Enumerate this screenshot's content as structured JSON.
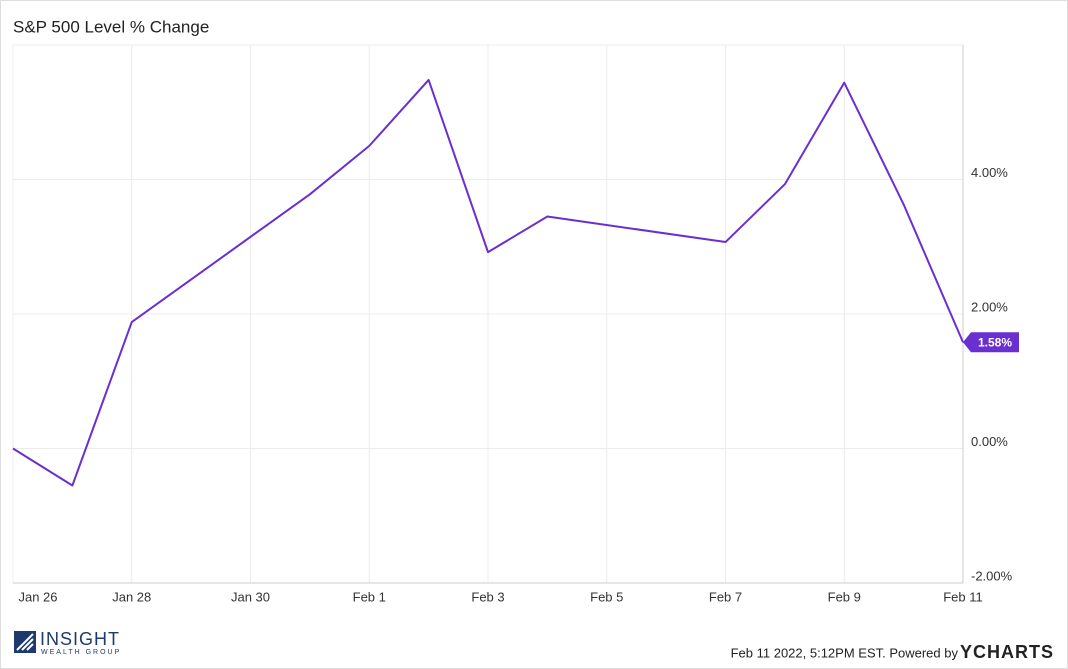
{
  "chart_data": {
    "type": "line",
    "title": "S&P 500 Level % Change",
    "x": [
      "Jan 26",
      "Jan 27",
      "Jan 28",
      "Jan 31",
      "Feb 1",
      "Feb 2",
      "Feb 3",
      "Feb 4",
      "Feb 7",
      "Feb 8",
      "Feb 9",
      "Feb 10",
      "Feb 11"
    ],
    "series": [
      {
        "name": "S&P 500 Level % Change",
        "color": "#6a2fd0",
        "values": [
          0,
          -0.55,
          1.88,
          3.78,
          4.5,
          5.48,
          2.92,
          3.45,
          3.07,
          3.93,
          5.44,
          3.63,
          1.58
        ],
        "value_labels": [
          null,
          null,
          null,
          null,
          null,
          null,
          null,
          null,
          null,
          null,
          null,
          null,
          "1.58%"
        ]
      }
    ],
    "xlim": [
      "Jan 26",
      "Feb 11"
    ],
    "xticks": [
      "Jan 26",
      "Jan 28",
      "Jan 30",
      "Feb 1",
      "Feb 3",
      "Feb 5",
      "Feb 7",
      "Feb 9",
      "Feb 11"
    ],
    "ylim": [
      -2,
      6
    ],
    "yticks": [
      {
        "value": -2,
        "label": "-2.00%"
      },
      {
        "value": 0,
        "label": "0.00%"
      },
      {
        "value": 2,
        "label": "2.00%"
      },
      {
        "value": 4,
        "label": "4.00%"
      }
    ],
    "grid": true
  },
  "footer": {
    "brand": "INSIGHT",
    "brand_sub": "WEALTH GROUP",
    "timestamp": "Feb 11 2022, 5:12PM EST. Powered by",
    "provider": "YCHARTS"
  }
}
